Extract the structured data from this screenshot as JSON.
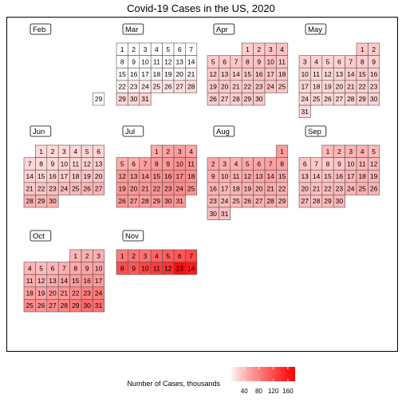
{
  "chart_data": {
    "type": "heatmap",
    "title": "Covid-19 Cases in the US, 2020",
    "year": 2020,
    "value_label": "Number of Cases, thousands",
    "legend": {
      "title": "Number of Cases, thousands",
      "ticks": [
        40,
        80,
        120,
        160
      ],
      "range": [
        0,
        180
      ],
      "color_low": "#ffffff",
      "color_high": "#ff0000",
      "position": "bottom"
    },
    "colors": {
      "cell_border": "#555555",
      "frame": "#000000",
      "background": "#ffffff"
    },
    "months": [
      {
        "label": "Feb",
        "month": 2,
        "days": [
          29
        ],
        "values": [
          0
        ]
      },
      {
        "label": "Mar",
        "month": 3,
        "days": [
          1,
          2,
          3,
          4,
          5,
          6,
          7,
          8,
          9,
          10,
          11,
          12,
          13,
          14,
          15,
          16,
          17,
          18,
          19,
          20,
          21,
          22,
          23,
          24,
          25,
          26,
          27,
          28,
          29,
          30,
          31
        ],
        "values": [
          0,
          0,
          0,
          0,
          0,
          0,
          0,
          0,
          0,
          0,
          0,
          0,
          1,
          1,
          1,
          1,
          1,
          2,
          3,
          4,
          5,
          6,
          7,
          9,
          11,
          13,
          16,
          19,
          21,
          21,
          24
        ]
      },
      {
        "label": "Apr",
        "month": 4,
        "days": [
          1,
          2,
          3,
          4,
          5,
          6,
          7,
          8,
          9,
          10,
          11,
          12,
          13,
          14,
          15,
          16,
          17,
          18,
          19,
          20,
          21,
          22,
          23,
          24,
          25,
          26,
          27,
          28,
          29,
          30
        ],
        "values": [
          26,
          29,
          32,
          34,
          28,
          29,
          30,
          32,
          33,
          34,
          30,
          28,
          27,
          26,
          29,
          31,
          32,
          30,
          27,
          28,
          26,
          28,
          30,
          32,
          30,
          27,
          24,
          25,
          27,
          29
        ]
      },
      {
        "label": "May",
        "month": 5,
        "days": [
          1,
          2,
          3,
          4,
          5,
          6,
          7,
          8,
          9,
          10,
          11,
          12,
          13,
          14,
          15,
          16,
          17,
          18,
          19,
          20,
          21,
          22,
          23,
          24,
          25,
          26,
          27,
          28,
          29,
          30,
          31
        ],
        "values": [
          30,
          28,
          26,
          25,
          23,
          24,
          27,
          27,
          26,
          22,
          20,
          20,
          21,
          25,
          26,
          24,
          22,
          20,
          21,
          22,
          25,
          24,
          22,
          20,
          19,
          18,
          19,
          22,
          24,
          23,
          20
        ]
      },
      {
        "label": "Jun",
        "month": 6,
        "days": [
          1,
          2,
          3,
          4,
          5,
          6,
          7,
          8,
          9,
          10,
          11,
          12,
          13,
          14,
          15,
          16,
          17,
          18,
          19,
          20,
          21,
          22,
          23,
          24,
          25,
          26,
          27,
          28,
          29,
          30
        ],
        "values": [
          19,
          20,
          20,
          21,
          22,
          22,
          20,
          19,
          19,
          20,
          21,
          22,
          24,
          23,
          22,
          24,
          26,
          28,
          31,
          32,
          31,
          30,
          34,
          37,
          39,
          42,
          43,
          44,
          42,
          45
        ]
      },
      {
        "label": "Jul",
        "month": 7,
        "days": [
          1,
          2,
          3,
          4,
          5,
          6,
          7,
          8,
          9,
          10,
          11,
          12,
          13,
          14,
          15,
          16,
          17,
          18,
          19,
          20,
          21,
          22,
          23,
          24,
          25,
          26,
          27,
          28,
          29,
          30,
          31
        ],
        "values": [
          50,
          54,
          57,
          52,
          48,
          49,
          58,
          61,
          63,
          67,
          65,
          61,
          59,
          62,
          66,
          70,
          72,
          68,
          64,
          62,
          63,
          66,
          69,
          70,
          66,
          62,
          60,
          58,
          60,
          64,
          62
        ]
      },
      {
        "label": "Aug",
        "month": 8,
        "days": [
          1,
          2,
          3,
          4,
          5,
          6,
          7,
          8,
          9,
          10,
          11,
          12,
          13,
          14,
          15,
          16,
          17,
          18,
          19,
          20,
          21,
          22,
          23,
          24,
          25,
          26,
          27,
          28,
          29,
          30,
          31
        ],
        "values": [
          58,
          52,
          48,
          46,
          50,
          53,
          56,
          55,
          48,
          45,
          47,
          50,
          52,
          54,
          50,
          44,
          41,
          42,
          44,
          46,
          48,
          45,
          40,
          37,
          38,
          41,
          43,
          45,
          42,
          36,
          34
        ]
      },
      {
        "label": "Sep",
        "month": 9,
        "days": [
          1,
          2,
          3,
          4,
          5,
          6,
          7,
          8,
          9,
          10,
          11,
          12,
          13,
          14,
          15,
          16,
          17,
          18,
          19,
          20,
          21,
          22,
          23,
          24,
          25,
          26,
          27,
          28,
          29,
          30
        ],
        "values": [
          38,
          40,
          42,
          44,
          40,
          33,
          29,
          27,
          31,
          35,
          40,
          38,
          34,
          31,
          34,
          37,
          41,
          43,
          41,
          37,
          34,
          36,
          39,
          42,
          45,
          43,
          37,
          34,
          38,
          40
        ]
      },
      {
        "label": "Oct",
        "month": 10,
        "days": [
          1,
          2,
          3,
          4,
          5,
          6,
          7,
          8,
          9,
          10,
          11,
          12,
          13,
          14,
          15,
          16,
          17,
          18,
          19,
          20,
          21,
          22,
          23,
          24,
          25,
          26,
          27,
          28,
          29,
          30,
          31
        ],
        "values": [
          42,
          45,
          46,
          42,
          37,
          40,
          46,
          50,
          55,
          54,
          48,
          44,
          48,
          54,
          60,
          64,
          61,
          54,
          55,
          60,
          63,
          70,
          80,
          82,
          70,
          66,
          72,
          77,
          85,
          95,
          90
        ]
      },
      {
        "label": "Nov",
        "month": 11,
        "days": [
          1,
          2,
          3,
          4,
          5,
          6,
          7,
          8,
          9,
          10,
          11,
          12,
          13,
          14
        ],
        "values": [
          82,
          88,
          90,
          100,
          105,
          110,
          120,
          118,
          112,
          125,
          132,
          140,
          170,
          158
        ]
      }
    ]
  }
}
